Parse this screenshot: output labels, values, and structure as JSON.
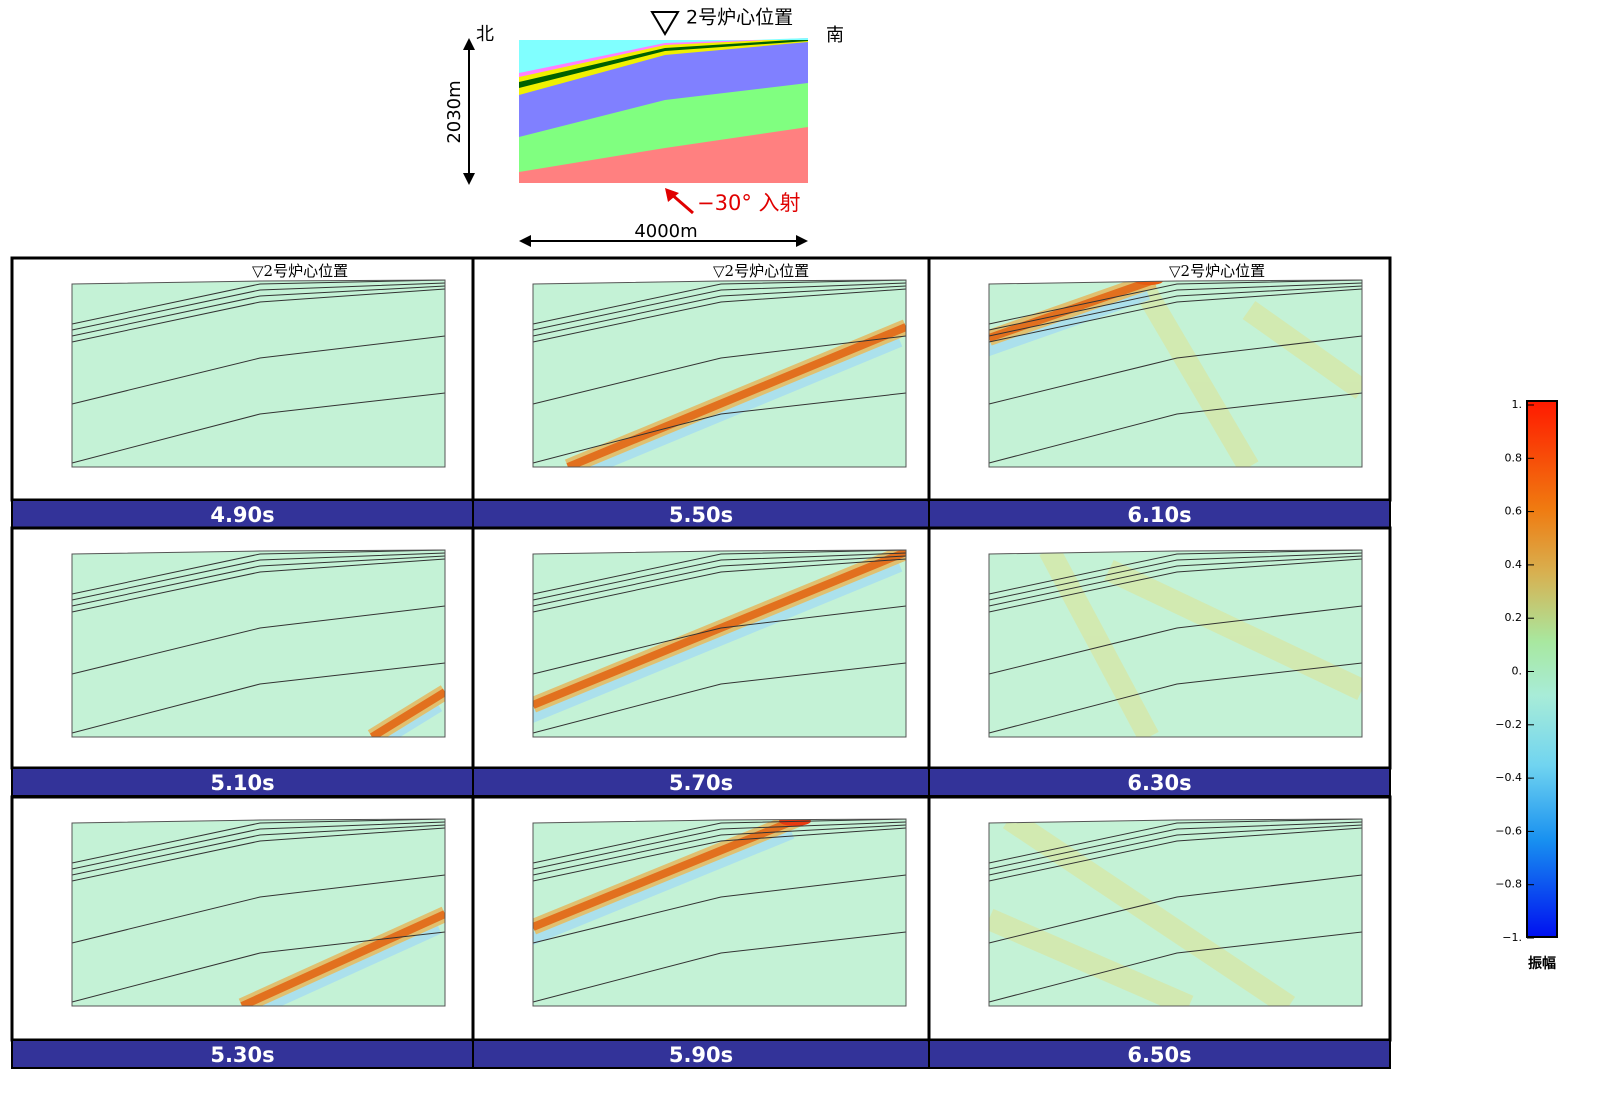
{
  "header": {
    "core_label": "2号炉心位置",
    "north": "北",
    "south": "南",
    "height": "2030m",
    "width": "4000m",
    "incidence": "−30°  入射"
  },
  "panels": [
    {
      "label": "▽2号炉心位置",
      "time": "4.90s"
    },
    {
      "time": "5.10s"
    },
    {
      "time": "5.30s"
    },
    {
      "label": "▽2号炉心位置",
      "time": "5.50s"
    },
    {
      "time": "5.70s"
    },
    {
      "time": "5.90s"
    },
    {
      "label": "▽2号炉心位置",
      "time": "6.10s"
    },
    {
      "time": "6.30s"
    },
    {
      "time": "6.50s"
    }
  ],
  "colorbar": {
    "ticks": [
      "1.",
      "0.8",
      "0.6",
      "0.4",
      "0.2",
      "0.",
      "−0.2",
      "−0.4",
      "−0.6",
      "−0.8",
      "−1."
    ],
    "label": "振幅"
  }
}
